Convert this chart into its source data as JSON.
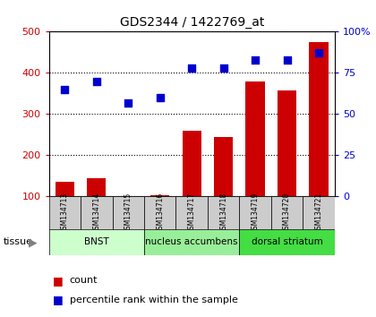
{
  "title": "GDS2344 / 1422769_at",
  "samples": [
    "GSM134713",
    "GSM134714",
    "GSM134715",
    "GSM134716",
    "GSM134717",
    "GSM134718",
    "GSM134719",
    "GSM134720",
    "GSM134721"
  ],
  "count_values": [
    135,
    145,
    100,
    103,
    260,
    245,
    380,
    357,
    475
  ],
  "percentile_values": [
    65,
    70,
    57,
    60,
    78,
    78,
    83,
    83,
    87
  ],
  "tissue_groups": [
    {
      "label": "BNST",
      "start": 0,
      "end": 3,
      "color": "#ccffcc"
    },
    {
      "label": "nucleus accumbens",
      "start": 3,
      "end": 6,
      "color": "#99ee99"
    },
    {
      "label": "dorsal striatum",
      "start": 6,
      "end": 9,
      "color": "#44dd44"
    }
  ],
  "ylim_left": [
    100,
    500
  ],
  "ylim_right": [
    0,
    100
  ],
  "yticks_left": [
    100,
    200,
    300,
    400,
    500
  ],
  "yticks_right": [
    0,
    25,
    50,
    75,
    100
  ],
  "yticklabels_right": [
    "0",
    "25",
    "50",
    "75",
    "100%"
  ],
  "bar_color": "#cc0000",
  "dot_color": "#0000cc",
  "bar_bottom": 100,
  "background_color": "#ffffff",
  "grid_color": "#000000",
  "sample_box_color": "#cccccc",
  "tissue_label": "tissue",
  "legend_count": "count",
  "legend_percentile": "percentile rank within the sample"
}
